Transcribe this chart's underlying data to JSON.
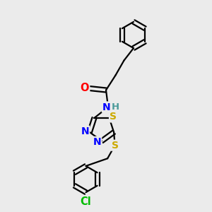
{
  "bg_color": "#ebebeb",
  "bond_color": "#000000",
  "bond_width": 1.6,
  "atom_colors": {
    "O": "#ff0000",
    "N": "#0000ff",
    "S": "#ccaa00",
    "Cl": "#00bb00",
    "C": "#000000",
    "H": "#4a9a9a"
  },
  "font_size": 9.5,
  "fig_size": [
    3.0,
    3.0
  ],
  "dpi": 100,
  "xlim": [
    0,
    10
  ],
  "ylim": [
    0,
    10
  ]
}
